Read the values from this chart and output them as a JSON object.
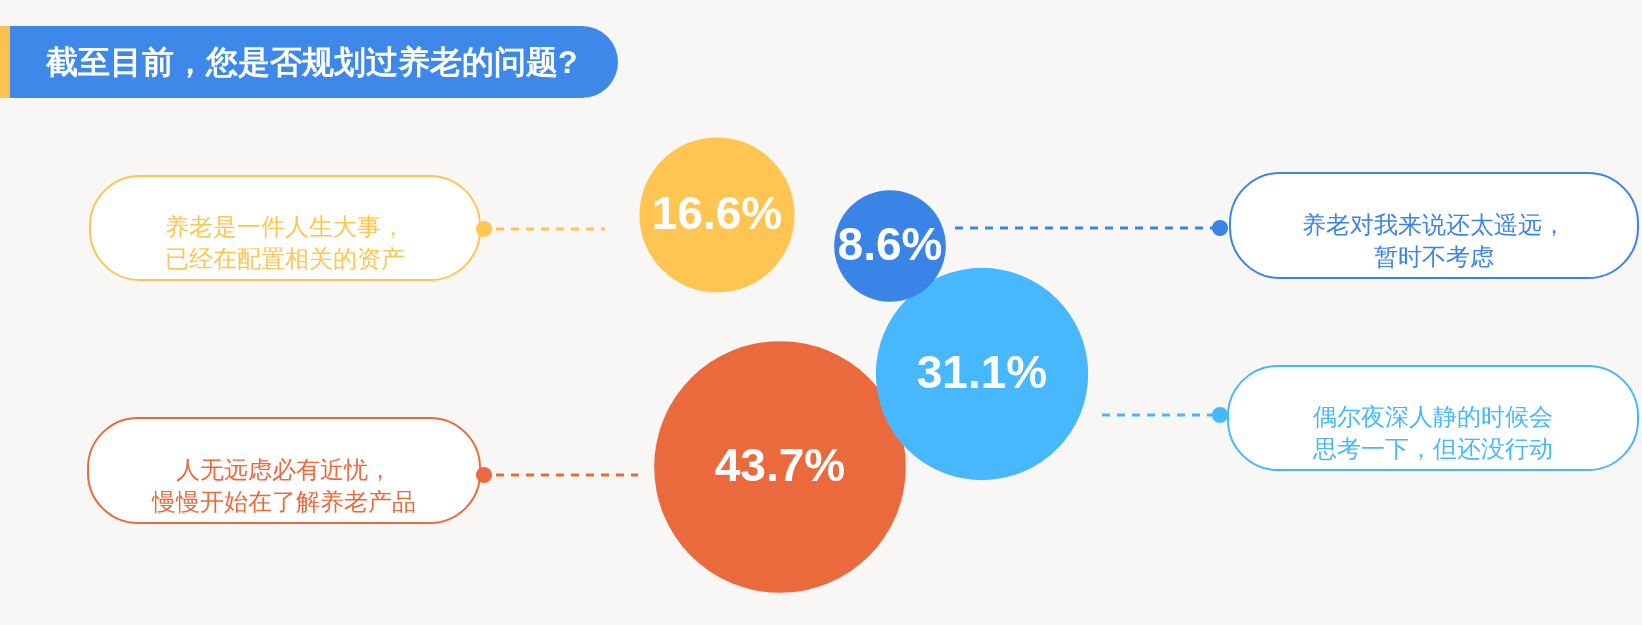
{
  "chart_data": {
    "type": "other",
    "title": "截至目前，您是否规划过养老的问题?",
    "categories": [
      "养老是一件人生大事，已经在配置相关的资产",
      "养老对我来说还太遥远，暂时不考虑",
      "人无远虑必有近忧，慢慢开始在了解养老产品",
      "偶尔夜深人静的时候会思考一下，但还没行动"
    ],
    "values": [
      16.6,
      8.6,
      43.7,
      31.1
    ],
    "value_labels": [
      "16.6%",
      "8.6%",
      "43.7%",
      "31.1%"
    ],
    "colors": [
      "#ffc552",
      "#3a84e8",
      "#ea6a3e",
      "#47b8fd"
    ]
  }
}
